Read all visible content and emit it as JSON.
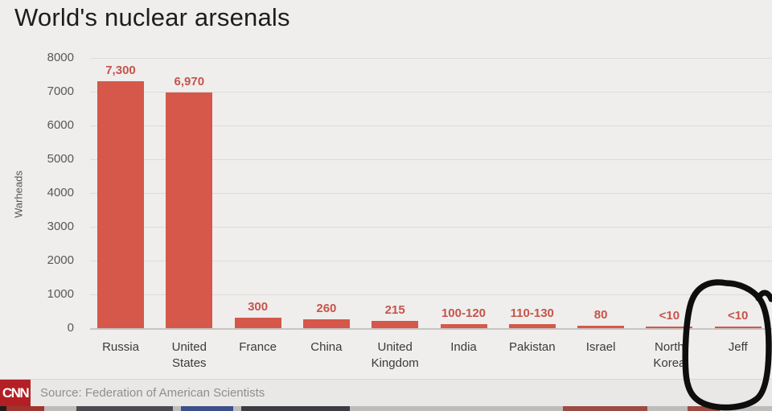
{
  "title": "World's nuclear arsenals",
  "chart_data": {
    "type": "bar",
    "title": "World's nuclear arsenals",
    "xlabel": "",
    "ylabel": "Warheads",
    "ylim": [
      0,
      8000
    ],
    "grid": true,
    "ytick_labels": [
      "8000",
      "7000",
      "6000",
      "5000",
      "4000",
      "3000",
      "2000",
      "1000",
      "0"
    ],
    "bar_color": "#d5584a",
    "value_label_color": "#c5544b",
    "bars": [
      {
        "category": "Russia",
        "category_display": "Russia",
        "value_label": "7,300",
        "value": 7300
      },
      {
        "category": "United States",
        "category_display": "United\nStates",
        "value_label": "6,970",
        "value": 6970
      },
      {
        "category": "France",
        "category_display": "France",
        "value_label": "300",
        "value": 300
      },
      {
        "category": "China",
        "category_display": "China",
        "value_label": "260",
        "value": 260
      },
      {
        "category": "United Kingdom",
        "category_display": "United\nKingdom",
        "value_label": "215",
        "value": 215
      },
      {
        "category": "India",
        "category_display": "India",
        "value_label": "100-120",
        "value": 110
      },
      {
        "category": "Pakistan",
        "category_display": "Pakistan",
        "value_label": "110-130",
        "value": 120
      },
      {
        "category": "Israel",
        "category_display": "Israel",
        "value_label": "80",
        "value": 80
      },
      {
        "category": "North Korea",
        "category_display": "North\nKorea",
        "value_label": "<10",
        "value": 10
      },
      {
        "category": "Jeff",
        "category_display": "Jeff",
        "value_label": "<10",
        "value": 10
      }
    ],
    "annotation": {
      "shape": "hand-drawn-marker-circle",
      "circled_category": "Jeff",
      "color": "#0e0e0e"
    }
  },
  "footer": {
    "logo": "CNN",
    "source": "Source: Federation of American Scientists"
  },
  "colors": {
    "background": "#efeeec",
    "accent_red": "#d5584a",
    "cnn_red": "#b22025"
  }
}
